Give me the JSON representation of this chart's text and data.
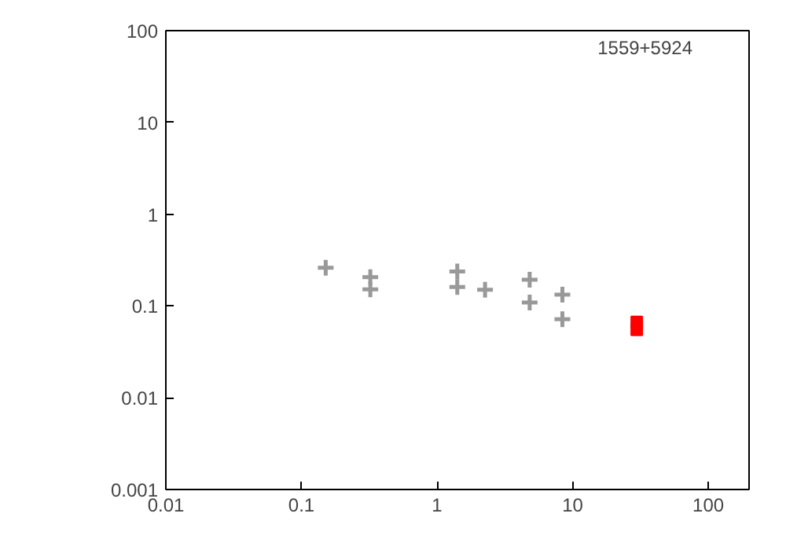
{
  "chart_data": {
    "type": "scatter",
    "log": "xy",
    "xlim": [
      0.01,
      200
    ],
    "ylim": [
      0.001,
      100
    ],
    "xticks": [
      0.01,
      0.1,
      1,
      10,
      100
    ],
    "yticks": [
      0.001,
      0.01,
      0.1,
      1,
      10,
      100
    ],
    "grid": false,
    "annotations": [
      "1559+5924"
    ],
    "series": [
      {
        "color": "#999999",
        "marker": "cross",
        "x": [
          0.151,
          0.322,
          0.322,
          1.41,
          1.41,
          2.26,
          4.82,
          4.82,
          8.4,
          8.4
        ],
        "values": [
          0.261,
          0.206,
          0.152,
          0.238,
          0.161,
          0.15,
          0.193,
          0.109,
          0.133,
          0.0718
        ]
      },
      {
        "color": "#ff0000",
        "marker": "square",
        "x": [
          29.7,
          29.7
        ],
        "values": [
          0.067,
          0.055
        ]
      }
    ]
  }
}
